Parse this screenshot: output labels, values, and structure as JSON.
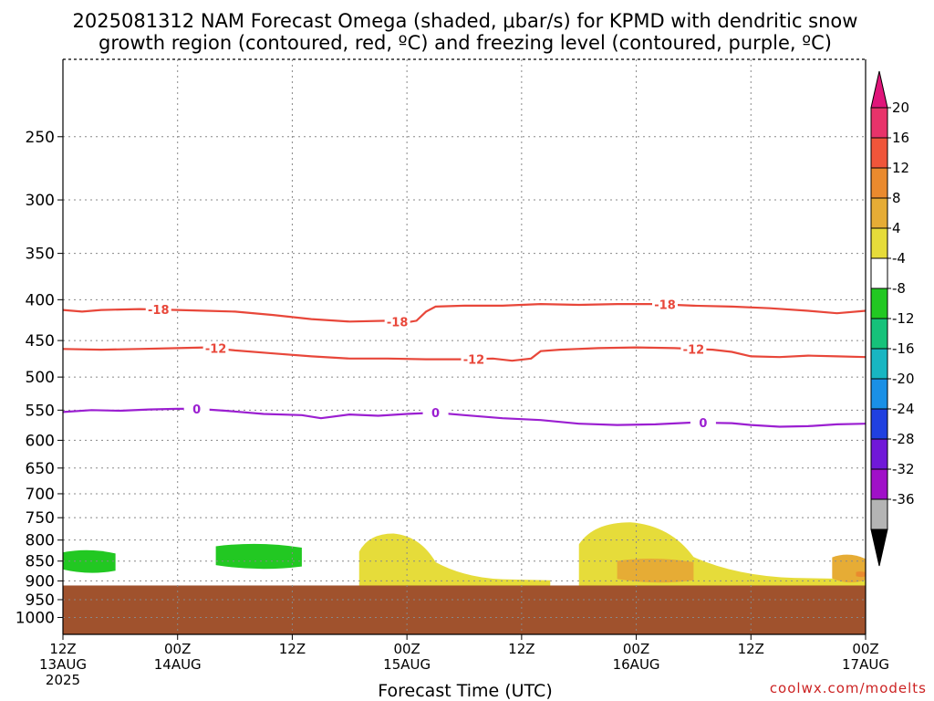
{
  "title": {
    "line1": "2025081312 NAM Forecast Omega (shaded, μbar/s) for KPMD with dendritic snow",
    "line2": "growth region (contoured, red, ºC) and freezing level (contoured, purple, ºC)"
  },
  "watermark": "coolwx.com/modelts",
  "colors": {
    "ground": "#a0522d",
    "snow_growth_contour": "#e8473a",
    "freezing_level_contour": "#9b1fd1",
    "grid": "#888888"
  },
  "chart_data": {
    "type": "time-height cross section",
    "xlabel": "Forecast Time (UTC)",
    "x_ticks": [
      {
        "hour": 0,
        "label1": "12Z",
        "label2": "13AUG",
        "label3": "2025"
      },
      {
        "hour": 12,
        "label1": "00Z",
        "label2": "14AUG",
        "label3": ""
      },
      {
        "hour": 24,
        "label1": "12Z",
        "label2": "",
        "label3": ""
      },
      {
        "hour": 36,
        "label1": "00Z",
        "label2": "15AUG",
        "label3": ""
      },
      {
        "hour": 48,
        "label1": "12Z",
        "label2": "",
        "label3": ""
      },
      {
        "hour": 60,
        "label1": "00Z",
        "label2": "16AUG",
        "label3": ""
      },
      {
        "hour": 72,
        "label1": "12Z",
        "label2": "",
        "label3": ""
      },
      {
        "hour": 84,
        "label1": "00Z",
        "label2": "17AUG",
        "label3": ""
      }
    ],
    "xlim": [
      0,
      84
    ],
    "ylabel": "",
    "y_scale": "log-pressure (inverted)",
    "ylim_hPa": [
      1050,
      200
    ],
    "y_ticks": [
      250,
      300,
      350,
      400,
      450,
      500,
      550,
      600,
      650,
      700,
      750,
      800,
      850,
      900,
      950,
      1000
    ],
    "grid": true,
    "ground_pressure_hPa": 912,
    "colorbar": {
      "labels": [
        "20",
        "16",
        "12",
        "8",
        "4",
        "-4",
        "-8",
        "-12",
        "-16",
        "-20",
        "-24",
        "-28",
        "-32",
        "-36"
      ],
      "colors": [
        "#e8336a",
        "#f0553a",
        "#ea8a2e",
        "#e6ac35",
        "#e6dc3a",
        "#ffffff",
        "#22c822",
        "#16c27a",
        "#18b6c2",
        "#1a90e6",
        "#2040e0",
        "#7018d8",
        "#a010c8",
        "#b4b4b4"
      ],
      "top_arrow_color": "#e0157a",
      "bottom_arrow_color": "#000000"
    },
    "series": [
      {
        "name": "-18",
        "kind": "contour",
        "color_key": "snow_growth_contour",
        "points": [
          [
            0,
            412
          ],
          [
            2,
            414
          ],
          [
            4,
            412
          ],
          [
            8,
            411
          ],
          [
            12,
            412
          ],
          [
            15,
            413
          ],
          [
            18,
            414
          ],
          [
            22,
            418
          ],
          [
            26,
            423
          ],
          [
            30,
            426
          ],
          [
            34,
            425
          ],
          [
            36,
            427
          ],
          [
            37,
            425
          ],
          [
            38,
            414
          ],
          [
            39,
            408
          ],
          [
            42,
            407
          ],
          [
            46,
            407
          ],
          [
            50,
            405
          ],
          [
            54,
            406
          ],
          [
            58,
            405
          ],
          [
            62,
            405
          ],
          [
            66,
            407
          ],
          [
            70,
            408
          ],
          [
            74,
            410
          ],
          [
            78,
            413
          ],
          [
            81,
            416
          ],
          [
            84,
            413
          ]
        ],
        "labels_at_hour": [
          10,
          35,
          63
        ]
      },
      {
        "name": "-12",
        "kind": "contour",
        "color_key": "snow_growth_contour",
        "points": [
          [
            0,
            461
          ],
          [
            4,
            462
          ],
          [
            8,
            461
          ],
          [
            12,
            460
          ],
          [
            15,
            459
          ],
          [
            18,
            463
          ],
          [
            22,
            467
          ],
          [
            26,
            471
          ],
          [
            30,
            474
          ],
          [
            34,
            474
          ],
          [
            38,
            475
          ],
          [
            42,
            475
          ],
          [
            45,
            474
          ],
          [
            47,
            477
          ],
          [
            49,
            474
          ],
          [
            50,
            464
          ],
          [
            52,
            462
          ],
          [
            56,
            460
          ],
          [
            60,
            459
          ],
          [
            64,
            460
          ],
          [
            68,
            462
          ],
          [
            70,
            465
          ],
          [
            72,
            471
          ],
          [
            75,
            472
          ],
          [
            78,
            470
          ],
          [
            81,
            471
          ],
          [
            84,
            472
          ]
        ],
        "labels_at_hour": [
          16,
          43,
          66
        ]
      },
      {
        "name": "0",
        "kind": "contour",
        "color_key": "freezing_level_contour",
        "points": [
          [
            0,
            553
          ],
          [
            3,
            550
          ],
          [
            6,
            551
          ],
          [
            9,
            549
          ],
          [
            12,
            548
          ],
          [
            14,
            548
          ],
          [
            17,
            551
          ],
          [
            21,
            556
          ],
          [
            25,
            558
          ],
          [
            27,
            563
          ],
          [
            30,
            557
          ],
          [
            33,
            559
          ],
          [
            36,
            556
          ],
          [
            39,
            554
          ],
          [
            42,
            558
          ],
          [
            46,
            563
          ],
          [
            50,
            566
          ],
          [
            54,
            572
          ],
          [
            58,
            574
          ],
          [
            62,
            573
          ],
          [
            66,
            570
          ],
          [
            70,
            571
          ],
          [
            72,
            574
          ],
          [
            75,
            577
          ],
          [
            78,
            576
          ],
          [
            81,
            573
          ],
          [
            84,
            572
          ]
        ],
        "labels_at_hour": [
          14,
          39,
          67
        ]
      }
    ],
    "shaded_regions": [
      {
        "value_range": "-8 to -4",
        "color_index": 6,
        "hours": [
          0,
          5.5
        ],
        "top_hPa": 820,
        "bottom_hPa": 880
      },
      {
        "value_range": "-8 to -4",
        "color_index": 6,
        "hours": [
          16,
          25
        ],
        "top_hPa": 805,
        "bottom_hPa": 870
      },
      {
        "value_range": "4 to 8",
        "color_index": 4,
        "hours": [
          31,
          51
        ],
        "top_hPa": 785,
        "bottom_hPa": 912
      },
      {
        "value_range": "4 to 8",
        "color_index": 4,
        "hours": [
          54,
          84
        ],
        "top_hPa": 760,
        "bottom_hPa": 912
      },
      {
        "value_range": "8 to 12",
        "color_index": 3,
        "hours": [
          58,
          66
        ],
        "top_hPa": 840,
        "bottom_hPa": 905
      },
      {
        "value_range": "8 to 12",
        "color_index": 3,
        "hours": [
          80.5,
          84
        ],
        "top_hPa": 830,
        "bottom_hPa": 905
      },
      {
        "value_range": "12 to 16",
        "color_index": 2,
        "hours": [
          83,
          84
        ],
        "top_hPa": 875,
        "bottom_hPa": 890
      }
    ]
  }
}
